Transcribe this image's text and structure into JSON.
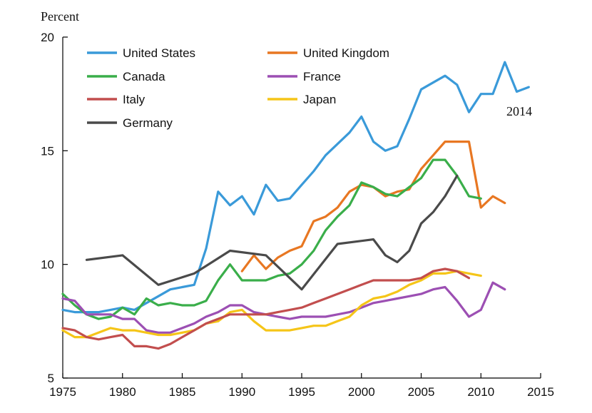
{
  "chart_data": {
    "type": "line",
    "ylabel": "Percent",
    "xlim": [
      1975,
      2015
    ],
    "ylim": [
      5,
      20
    ],
    "x_ticks": [
      1975,
      1980,
      1985,
      1990,
      1995,
      2000,
      2005,
      2010,
      2015
    ],
    "y_ticks": [
      5,
      10,
      15,
      20
    ],
    "grid": false,
    "legend_position": "top-left",
    "annotation": "2014",
    "series": [
      {
        "name": "United States",
        "color": "#3a9ad9",
        "points": [
          [
            1975,
            8.0
          ],
          [
            1976,
            7.9
          ],
          [
            1977,
            7.9
          ],
          [
            1978,
            7.9
          ],
          [
            1979,
            8.0
          ],
          [
            1980,
            8.1
          ],
          [
            1981,
            8.0
          ],
          [
            1982,
            8.3
          ],
          [
            1983,
            8.6
          ],
          [
            1984,
            8.9
          ],
          [
            1985,
            9.0
          ],
          [
            1986,
            9.1
          ],
          [
            1987,
            10.7
          ],
          [
            1988,
            13.2
          ],
          [
            1989,
            12.6
          ],
          [
            1990,
            13.0
          ],
          [
            1991,
            12.2
          ],
          [
            1992,
            13.5
          ],
          [
            1993,
            12.8
          ],
          [
            1994,
            12.9
          ],
          [
            1995,
            13.5
          ],
          [
            1996,
            14.1
          ],
          [
            1997,
            14.8
          ],
          [
            1998,
            15.3
          ],
          [
            1999,
            15.8
          ],
          [
            2000,
            16.5
          ],
          [
            2001,
            15.4
          ],
          [
            2002,
            15.0
          ],
          [
            2003,
            15.2
          ],
          [
            2004,
            16.4
          ],
          [
            2005,
            17.7
          ],
          [
            2006,
            18.0
          ],
          [
            2007,
            18.3
          ],
          [
            2008,
            17.9
          ],
          [
            2009,
            16.7
          ],
          [
            2010,
            17.5
          ],
          [
            2011,
            17.5
          ],
          [
            2012,
            18.9
          ],
          [
            2013,
            17.6
          ],
          [
            2014,
            17.8
          ]
        ]
      },
      {
        "name": "United Kingdom",
        "color": "#e87722",
        "points": [
          [
            1990,
            9.7
          ],
          [
            1991,
            10.4
          ],
          [
            1992,
            9.8
          ],
          [
            1993,
            10.3
          ],
          [
            1994,
            10.6
          ],
          [
            1995,
            10.8
          ],
          [
            1996,
            11.9
          ],
          [
            1997,
            12.1
          ],
          [
            1998,
            12.5
          ],
          [
            1999,
            13.2
          ],
          [
            2000,
            13.5
          ],
          [
            2001,
            13.4
          ],
          [
            2002,
            13.0
          ],
          [
            2003,
            13.2
          ],
          [
            2004,
            13.3
          ],
          [
            2005,
            14.2
          ],
          [
            2006,
            14.8
          ],
          [
            2007,
            15.4
          ],
          [
            2008,
            15.4
          ],
          [
            2009,
            15.4
          ],
          [
            2010,
            12.5
          ],
          [
            2011,
            13.0
          ],
          [
            2012,
            12.7
          ]
        ]
      },
      {
        "name": "Canada",
        "color": "#3aae4a",
        "points": [
          [
            1975,
            8.7
          ],
          [
            1976,
            8.2
          ],
          [
            1977,
            7.8
          ],
          [
            1978,
            7.6
          ],
          [
            1979,
            7.7
          ],
          [
            1980,
            8.1
          ],
          [
            1981,
            7.8
          ],
          [
            1982,
            8.5
          ],
          [
            1983,
            8.2
          ],
          [
            1984,
            8.3
          ],
          [
            1985,
            8.2
          ],
          [
            1986,
            8.2
          ],
          [
            1987,
            8.4
          ],
          [
            1988,
            9.3
          ],
          [
            1989,
            10.0
          ],
          [
            1990,
            9.3
          ],
          [
            1991,
            9.3
          ],
          [
            1992,
            9.3
          ],
          [
            1993,
            9.5
          ],
          [
            1994,
            9.6
          ],
          [
            1995,
            10.0
          ],
          [
            1996,
            10.6
          ],
          [
            1997,
            11.5
          ],
          [
            1998,
            12.1
          ],
          [
            1999,
            12.6
          ],
          [
            2000,
            13.6
          ],
          [
            2001,
            13.4
          ],
          [
            2002,
            13.1
          ],
          [
            2003,
            13.0
          ],
          [
            2004,
            13.4
          ],
          [
            2005,
            13.8
          ],
          [
            2006,
            14.6
          ],
          [
            2007,
            14.6
          ],
          [
            2008,
            13.9
          ],
          [
            2009,
            13.0
          ],
          [
            2010,
            12.9
          ]
        ]
      },
      {
        "name": "France",
        "color": "#9c4fb3",
        "points": [
          [
            1975,
            8.5
          ],
          [
            1976,
            8.4
          ],
          [
            1977,
            7.8
          ],
          [
            1978,
            7.8
          ],
          [
            1979,
            7.8
          ],
          [
            1980,
            7.6
          ],
          [
            1981,
            7.6
          ],
          [
            1982,
            7.1
          ],
          [
            1983,
            7.0
          ],
          [
            1984,
            7.0
          ],
          [
            1985,
            7.2
          ],
          [
            1986,
            7.4
          ],
          [
            1987,
            7.7
          ],
          [
            1988,
            7.9
          ],
          [
            1989,
            8.2
          ],
          [
            1990,
            8.2
          ],
          [
            1991,
            7.9
          ],
          [
            1992,
            7.8
          ],
          [
            1993,
            7.7
          ],
          [
            1994,
            7.6
          ],
          [
            1995,
            7.7
          ],
          [
            1996,
            7.7
          ],
          [
            1997,
            7.7
          ],
          [
            1998,
            7.8
          ],
          [
            1999,
            7.9
          ],
          [
            2000,
            8.1
          ],
          [
            2001,
            8.3
          ],
          [
            2002,
            8.4
          ],
          [
            2003,
            8.5
          ],
          [
            2004,
            8.6
          ],
          [
            2005,
            8.7
          ],
          [
            2006,
            8.9
          ],
          [
            2007,
            9.0
          ],
          [
            2008,
            8.4
          ],
          [
            2009,
            7.7
          ],
          [
            2010,
            8.0
          ],
          [
            2011,
            9.2
          ],
          [
            2012,
            8.9
          ]
        ]
      },
      {
        "name": "Japan",
        "color": "#f5c518",
        "points": [
          [
            1975,
            7.1
          ],
          [
            1976,
            6.8
          ],
          [
            1977,
            6.8
          ],
          [
            1978,
            7.0
          ],
          [
            1979,
            7.2
          ],
          [
            1980,
            7.1
          ],
          [
            1981,
            7.1
          ],
          [
            1982,
            7.0
          ],
          [
            1983,
            6.9
          ],
          [
            1984,
            6.9
          ],
          [
            1985,
            7.0
          ],
          [
            1986,
            7.1
          ],
          [
            1987,
            7.4
          ],
          [
            1988,
            7.5
          ],
          [
            1989,
            7.9
          ],
          [
            1990,
            8.0
          ],
          [
            1991,
            7.5
          ],
          [
            1992,
            7.1
          ],
          [
            1993,
            7.1
          ],
          [
            1994,
            7.1
          ],
          [
            1995,
            7.2
          ],
          [
            1996,
            7.3
          ],
          [
            1997,
            7.3
          ],
          [
            1998,
            7.5
          ],
          [
            1999,
            7.7
          ],
          [
            2000,
            8.2
          ],
          [
            2001,
            8.5
          ],
          [
            2002,
            8.6
          ],
          [
            2003,
            8.8
          ],
          [
            2004,
            9.1
          ],
          [
            2005,
            9.3
          ],
          [
            2006,
            9.6
          ],
          [
            2007,
            9.6
          ],
          [
            2008,
            9.7
          ],
          [
            2009,
            9.6
          ],
          [
            2010,
            9.5
          ]
        ]
      },
      {
        "name": "Italy",
        "color": "#c24e4e",
        "points": [
          [
            1975,
            7.2
          ],
          [
            1976,
            7.1
          ],
          [
            1977,
            6.8
          ],
          [
            1978,
            6.7
          ],
          [
            1979,
            6.8
          ],
          [
            1980,
            6.9
          ],
          [
            1981,
            6.4
          ],
          [
            1982,
            6.4
          ],
          [
            1983,
            6.3
          ],
          [
            1984,
            6.5
          ],
          [
            1985,
            6.8
          ],
          [
            1986,
            7.1
          ],
          [
            1987,
            7.4
          ],
          [
            1988,
            7.6
          ],
          [
            1989,
            7.8
          ],
          [
            1990,
            7.8
          ],
          [
            1991,
            7.8
          ],
          [
            1992,
            7.8
          ],
          [
            1993,
            7.9
          ],
          [
            1994,
            8.0
          ],
          [
            1995,
            8.1
          ],
          [
            1996,
            8.3
          ],
          [
            1997,
            8.5
          ],
          [
            1998,
            8.7
          ],
          [
            1999,
            8.9
          ],
          [
            2000,
            9.1
          ],
          [
            2001,
            9.3
          ],
          [
            2002,
            9.3
          ],
          [
            2003,
            9.3
          ],
          [
            2004,
            9.3
          ],
          [
            2005,
            9.4
          ],
          [
            2006,
            9.7
          ],
          [
            2007,
            9.8
          ],
          [
            2008,
            9.7
          ],
          [
            2009,
            9.4
          ]
        ]
      },
      {
        "name": "Germany",
        "color": "#4a4a4a",
        "points": [
          [
            1977,
            10.2
          ],
          [
            1980,
            10.4
          ],
          [
            1983,
            9.1
          ],
          [
            1986,
            9.6
          ],
          [
            1989,
            10.6
          ],
          [
            1992,
            10.4
          ],
          [
            1995,
            8.9
          ],
          [
            1998,
            10.9
          ],
          [
            2001,
            11.1
          ],
          [
            2002,
            10.4
          ],
          [
            2003,
            10.1
          ],
          [
            2004,
            10.6
          ],
          [
            2005,
            11.8
          ],
          [
            2006,
            12.3
          ],
          [
            2007,
            13.0
          ],
          [
            2008,
            13.9
          ]
        ]
      }
    ]
  }
}
